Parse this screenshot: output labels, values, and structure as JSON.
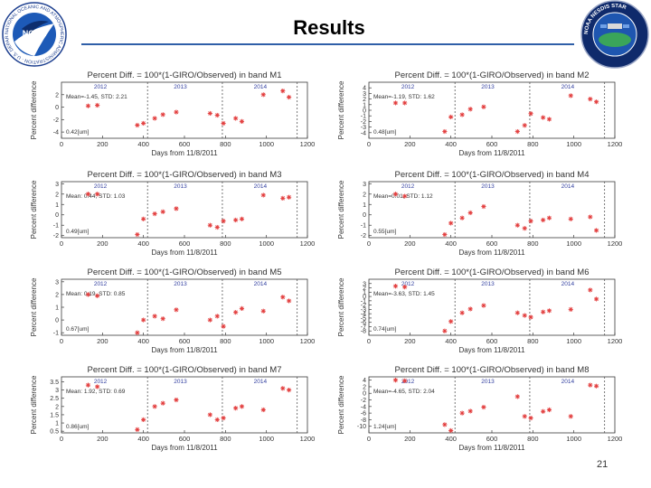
{
  "slide": {
    "title": "Results",
    "page_number": "21",
    "noaa_logo_text": "NOAA",
    "noaa_ring_text": "NATIONAL OCEANIC AND ATMOSPHERIC ADMINISTRATION · U.S. DEPARTMENT OF COMMERCE",
    "nesdis_logo_text": "NOAA NESDIS STAR"
  },
  "chart_data": [
    {
      "type": "scatter",
      "title": "Percent Diff. = 100*(1-GIRO/Observed) in band M1",
      "xlabel": "Days from 11/8/2011",
      "ylabel": "Percent difference",
      "xlim": [
        0,
        1200
      ],
      "ylim": [
        -5,
        4
      ],
      "xticks": [
        0,
        200,
        400,
        600,
        800,
        1000,
        1200
      ],
      "yticks": [
        -4,
        -2,
        0,
        2
      ],
      "year_lines": [
        420,
        785,
        1150
      ],
      "year_labels": [
        "2012",
        "2013",
        "2014"
      ],
      "stats": "Mean=-1.45, STD: 2.21",
      "wavelength": "0.42[um]",
      "x": [
        130,
        175,
        370,
        400,
        455,
        495,
        560,
        725,
        760,
        790,
        850,
        880,
        985,
        1080,
        1110
      ],
      "y": [
        0.2,
        0.3,
        -2.9,
        -2.6,
        -1.8,
        -1.2,
        -0.8,
        -1.0,
        -1.3,
        -2.6,
        -1.8,
        -2.3,
        2.0,
        2.6,
        1.6
      ]
    },
    {
      "type": "scatter",
      "title": "Percent Diff. = 100*(1-GIRO/Observed) in band M2",
      "xlabel": "Days from 11/8/2011",
      "ylabel": "Percent difference",
      "xlim": [
        0,
        1200
      ],
      "ylim": [
        -5,
        5
      ],
      "xticks": [
        0,
        200,
        400,
        600,
        800,
        1000,
        1200
      ],
      "yticks": [
        -4,
        -3,
        -2,
        -1,
        0,
        1,
        2,
        3,
        4
      ],
      "year_lines": [
        420,
        785,
        1150
      ],
      "year_labels": [
        "2012",
        "2013",
        "2014"
      ],
      "stats": "Mean=-1.19, STD: 1.62",
      "wavelength": "0.48[um]",
      "x": [
        130,
        175,
        370,
        400,
        455,
        495,
        560,
        725,
        760,
        790,
        850,
        880,
        985,
        1080,
        1110
      ],
      "y": [
        1.3,
        1.3,
        -3.8,
        -1.2,
        -0.8,
        0.2,
        0.6,
        -3.8,
        -2.7,
        -0.6,
        -1.3,
        -1.6,
        2.6,
        2.0,
        1.5
      ]
    },
    {
      "type": "scatter",
      "title": "Percent Diff. = 100*(1-GIRO/Observed) in band M3",
      "xlabel": "Days from 11/8/2011",
      "ylabel": "Percent difference",
      "xlim": [
        0,
        1200
      ],
      "ylim": [
        -2.2,
        3.2
      ],
      "xticks": [
        0,
        200,
        400,
        600,
        800,
        1000,
        1200
      ],
      "yticks": [
        -2,
        -1,
        0,
        1,
        2,
        3
      ],
      "year_lines": [
        420,
        785,
        1150
      ],
      "year_labels": [
        "2012",
        "2013",
        "2014"
      ],
      "stats": "Mean: 0.44, STD: 1.03",
      "wavelength": "0.49[um]",
      "x": [
        130,
        175,
        370,
        400,
        455,
        495,
        560,
        725,
        760,
        790,
        850,
        880,
        985,
        1080,
        1110
      ],
      "y": [
        2.0,
        2.0,
        -1.9,
        -0.4,
        0.1,
        0.3,
        0.6,
        -1.0,
        -1.2,
        -0.6,
        -0.5,
        -0.4,
        1.9,
        1.6,
        1.7
      ]
    },
    {
      "type": "scatter",
      "title": "Percent Diff. = 100*(1-GIRO/Observed) in band M4",
      "xlabel": "Days from 11/8/2011",
      "ylabel": "Percent difference",
      "xlim": [
        0,
        1200
      ],
      "ylim": [
        -2.2,
        3.2
      ],
      "xticks": [
        0,
        200,
        400,
        600,
        800,
        1000,
        1200
      ],
      "yticks": [
        -2,
        -1,
        0,
        1,
        2,
        3
      ],
      "year_lines": [
        420,
        785,
        1150
      ],
      "year_labels": [
        "2012",
        "2013",
        "2014"
      ],
      "stats": "Mean=0.01, STD: 1.12",
      "wavelength": "0.55[um]",
      "x": [
        130,
        175,
        370,
        400,
        455,
        495,
        560,
        725,
        760,
        790,
        850,
        880,
        985,
        1080,
        1110
      ],
      "y": [
        2.0,
        1.8,
        -1.9,
        -0.8,
        -0.3,
        0.2,
        0.8,
        -1.0,
        -1.3,
        -0.6,
        -0.5,
        -0.3,
        -0.4,
        -0.2,
        -1.5
      ]
    },
    {
      "type": "scatter",
      "title": "Percent Diff. = 100*(1-GIRO/Observed) in band M5",
      "xlabel": "Days from 11/8/2011",
      "ylabel": "Percent difference",
      "xlim": [
        0,
        1200
      ],
      "ylim": [
        -1.2,
        3.2
      ],
      "xticks": [
        0,
        200,
        400,
        600,
        800,
        1000,
        1200
      ],
      "yticks": [
        -1,
        0,
        1,
        2,
        3
      ],
      "year_lines": [
        420,
        785,
        1150
      ],
      "year_labels": [
        "2012",
        "2013",
        "2014"
      ],
      "stats": "Mean: 0.19, STD: 0.85",
      "wavelength": "0.67[um]",
      "x": [
        130,
        175,
        370,
        400,
        455,
        495,
        560,
        725,
        760,
        790,
        850,
        880,
        985,
        1080,
        1110
      ],
      "y": [
        2.0,
        1.9,
        -1.0,
        0.0,
        0.3,
        0.1,
        0.8,
        0.0,
        0.3,
        -0.5,
        0.6,
        0.9,
        0.7,
        1.8,
        1.5
      ]
    },
    {
      "type": "scatter",
      "title": "Percent Diff. = 100*(1-GIRO/Observed) in band M6",
      "xlabel": "Days from 11/8/2011",
      "ylabel": "Percent difference",
      "xlim": [
        0,
        1200
      ],
      "ylim": [
        -9,
        4
      ],
      "xticks": [
        0,
        200,
        400,
        600,
        800,
        1000,
        1200
      ],
      "yticks": [
        -8,
        -7,
        -6,
        -5,
        -4,
        -3,
        -2,
        -1,
        0,
        1,
        2,
        3
      ],
      "year_lines": [
        420,
        785,
        1150
      ],
      "year_labels": [
        "2012",
        "2013",
        "2014"
      ],
      "stats": "Mean=-3.63, STD: 1.45",
      "wavelength": "0.74[um]",
      "x": [
        130,
        175,
        370,
        400,
        455,
        495,
        560,
        725,
        760,
        790,
        850,
        880,
        985,
        1080,
        1110
      ],
      "y": [
        2.4,
        2.2,
        -8.0,
        -5.8,
        -3.8,
        -2.9,
        -2.1,
        -3.8,
        -4.4,
        -4.8,
        -3.6,
        -3.3,
        -3.0,
        1.5,
        -0.6
      ]
    },
    {
      "type": "scatter",
      "title": "Percent Diff. = 100*(1-GIRO/Observed) in band M7",
      "xlabel": "Days from 11/8/2011",
      "ylabel": "Percent difference",
      "xlim": [
        0,
        1200
      ],
      "ylim": [
        0.4,
        3.8
      ],
      "xticks": [
        0,
        200,
        400,
        600,
        800,
        1000,
        1200
      ],
      "yticks": [
        0.5,
        1.0,
        1.5,
        2.0,
        2.5,
        3.0,
        3.5
      ],
      "year_lines": [
        420,
        785,
        1150
      ],
      "year_labels": [
        "2012",
        "2013",
        "2014"
      ],
      "stats": "Mean: 1.92, STD: 0.69",
      "wavelength": "0.86[um]",
      "x": [
        130,
        175,
        370,
        400,
        455,
        495,
        560,
        725,
        760,
        790,
        850,
        880,
        985,
        1080,
        1110
      ],
      "y": [
        3.3,
        3.2,
        0.6,
        1.2,
        2.0,
        2.2,
        2.4,
        1.5,
        1.2,
        1.3,
        1.9,
        2.0,
        1.8,
        3.1,
        3.0
      ]
    },
    {
      "type": "scatter",
      "title": "Percent Diff. = 100*(1-GIRO/Observed) in band M8",
      "xlabel": "Days from 11/8/2011",
      "ylabel": "Percent difference",
      "xlim": [
        0,
        1200
      ],
      "ylim": [
        -12,
        5
      ],
      "xticks": [
        0,
        200,
        400,
        600,
        800,
        1000,
        1200
      ],
      "yticks": [
        -10,
        -8,
        -6,
        -4,
        -2,
        0,
        2,
        4
      ],
      "year_lines": [
        420,
        785,
        1150
      ],
      "year_labels": [
        "2012",
        "2013",
        "2014"
      ],
      "stats": "Mean=-4.65, STD: 2.04",
      "wavelength": "1.24[um]",
      "x": [
        130,
        175,
        370,
        400,
        455,
        495,
        560,
        725,
        760,
        790,
        850,
        880,
        985,
        1080,
        1110
      ],
      "y": [
        4.0,
        3.8,
        -9.5,
        -11.3,
        -6.0,
        -5.4,
        -4.2,
        -1.0,
        -7.0,
        -7.5,
        -5.5,
        -5.0,
        -7.0,
        2.5,
        2.2
      ]
    }
  ],
  "colors": {
    "marker": "#e23b3b",
    "frame": "#3a3a3a",
    "year_line": "#555555",
    "year_label": "#3340a0",
    "title_rule": "#2f5fa8"
  }
}
